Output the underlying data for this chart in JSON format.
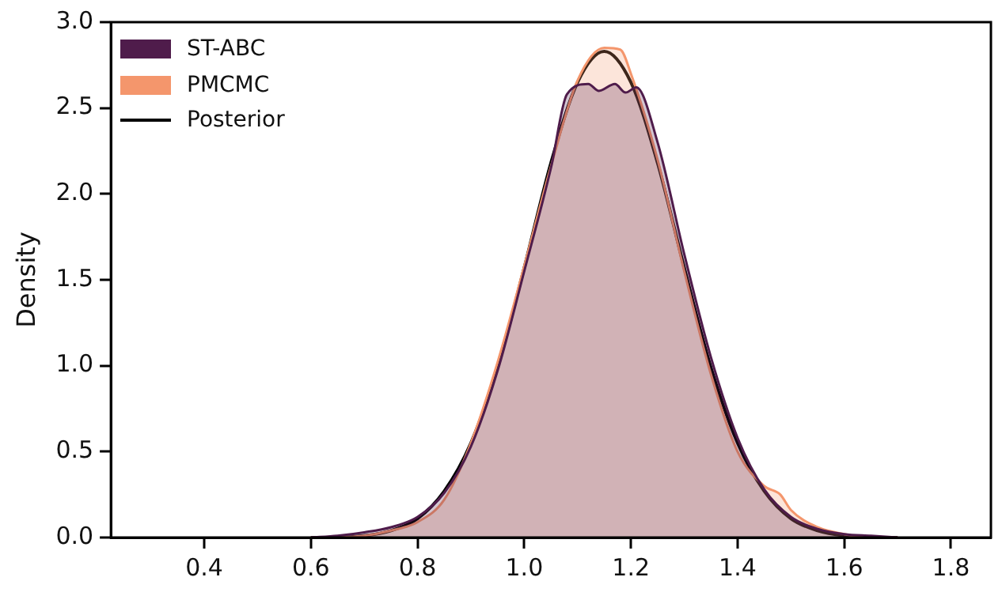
{
  "chart_data": {
    "type": "area",
    "ylabel": "Density",
    "xlim": [
      0.225,
      1.875
    ],
    "ylim": [
      0,
      3
    ],
    "xticks": [
      0.4,
      0.6,
      0.8,
      {
        "value": 1,
        "label": "1.0"
      },
      1.2,
      1.4,
      1.6,
      1.8
    ],
    "yticks": [
      {
        "value": 0,
        "label": "0.0"
      },
      {
        "value": 0.5,
        "label": "0.5"
      },
      {
        "value": 1,
        "label": "1.0"
      },
      {
        "value": 1.5,
        "label": "1.5"
      },
      {
        "value": 2,
        "label": "2.0"
      },
      {
        "value": 2.5,
        "label": "2.5"
      },
      {
        "value": 3,
        "label": "3.0"
      }
    ],
    "grid": false,
    "legend": "top left",
    "marker": "none",
    "series": [
      {
        "name": "ST-ABC",
        "color": "#4f1c4b",
        "x": [
          0.6,
          0.65,
          0.7,
          0.75,
          0.8,
          0.85,
          0.9,
          0.95,
          1.0,
          1.05,
          1.08,
          1.12,
          1.14,
          1.17,
          1.19,
          1.21,
          1.25,
          1.3,
          1.35,
          1.4,
          1.45,
          1.5,
          1.55,
          1.6,
          1.65,
          1.7
        ],
        "values": [
          0,
          0.01,
          0.03,
          0.06,
          0.12,
          0.26,
          0.53,
          0.97,
          1.55,
          2.15,
          2.58,
          2.64,
          2.6,
          2.64,
          2.59,
          2.62,
          2.3,
          1.65,
          1.05,
          0.58,
          0.28,
          0.12,
          0.05,
          0.02,
          0.01,
          0
        ]
      },
      {
        "name": "PMCMC",
        "color": "#f4966c",
        "x": [
          0.6,
          0.65,
          0.7,
          0.75,
          0.8,
          0.85,
          0.9,
          0.95,
          1.0,
          1.05,
          1.1,
          1.15,
          1.18,
          1.2,
          1.25,
          1.3,
          1.35,
          1.4,
          1.45,
          1.48,
          1.5,
          1.55,
          1.6,
          1.65,
          1.7
        ],
        "values": [
          0,
          0,
          0.01,
          0.04,
          0.09,
          0.22,
          0.55,
          1.02,
          1.58,
          2.16,
          2.66,
          2.85,
          2.84,
          2.7,
          2.2,
          1.55,
          0.95,
          0.5,
          0.3,
          0.25,
          0.16,
          0.06,
          0.02,
          0,
          0
        ]
      },
      {
        "name": "Posterior",
        "type": "line",
        "color": "#000000",
        "x": [
          0.6,
          0.65,
          0.7,
          0.75,
          0.8,
          0.85,
          0.9,
          0.95,
          1.0,
          1.05,
          1.1,
          1.15,
          1.2,
          1.25,
          1.3,
          1.35,
          1.4,
          1.45,
          1.5,
          1.55,
          1.6,
          1.65,
          1.7
        ],
        "values": [
          0,
          0,
          0.01,
          0.04,
          0.11,
          0.27,
          0.55,
          0.99,
          1.57,
          2.18,
          2.65,
          2.83,
          2.65,
          2.18,
          1.57,
          0.99,
          0.55,
          0.27,
          0.11,
          0.04,
          0.01,
          0,
          0
        ]
      }
    ]
  }
}
